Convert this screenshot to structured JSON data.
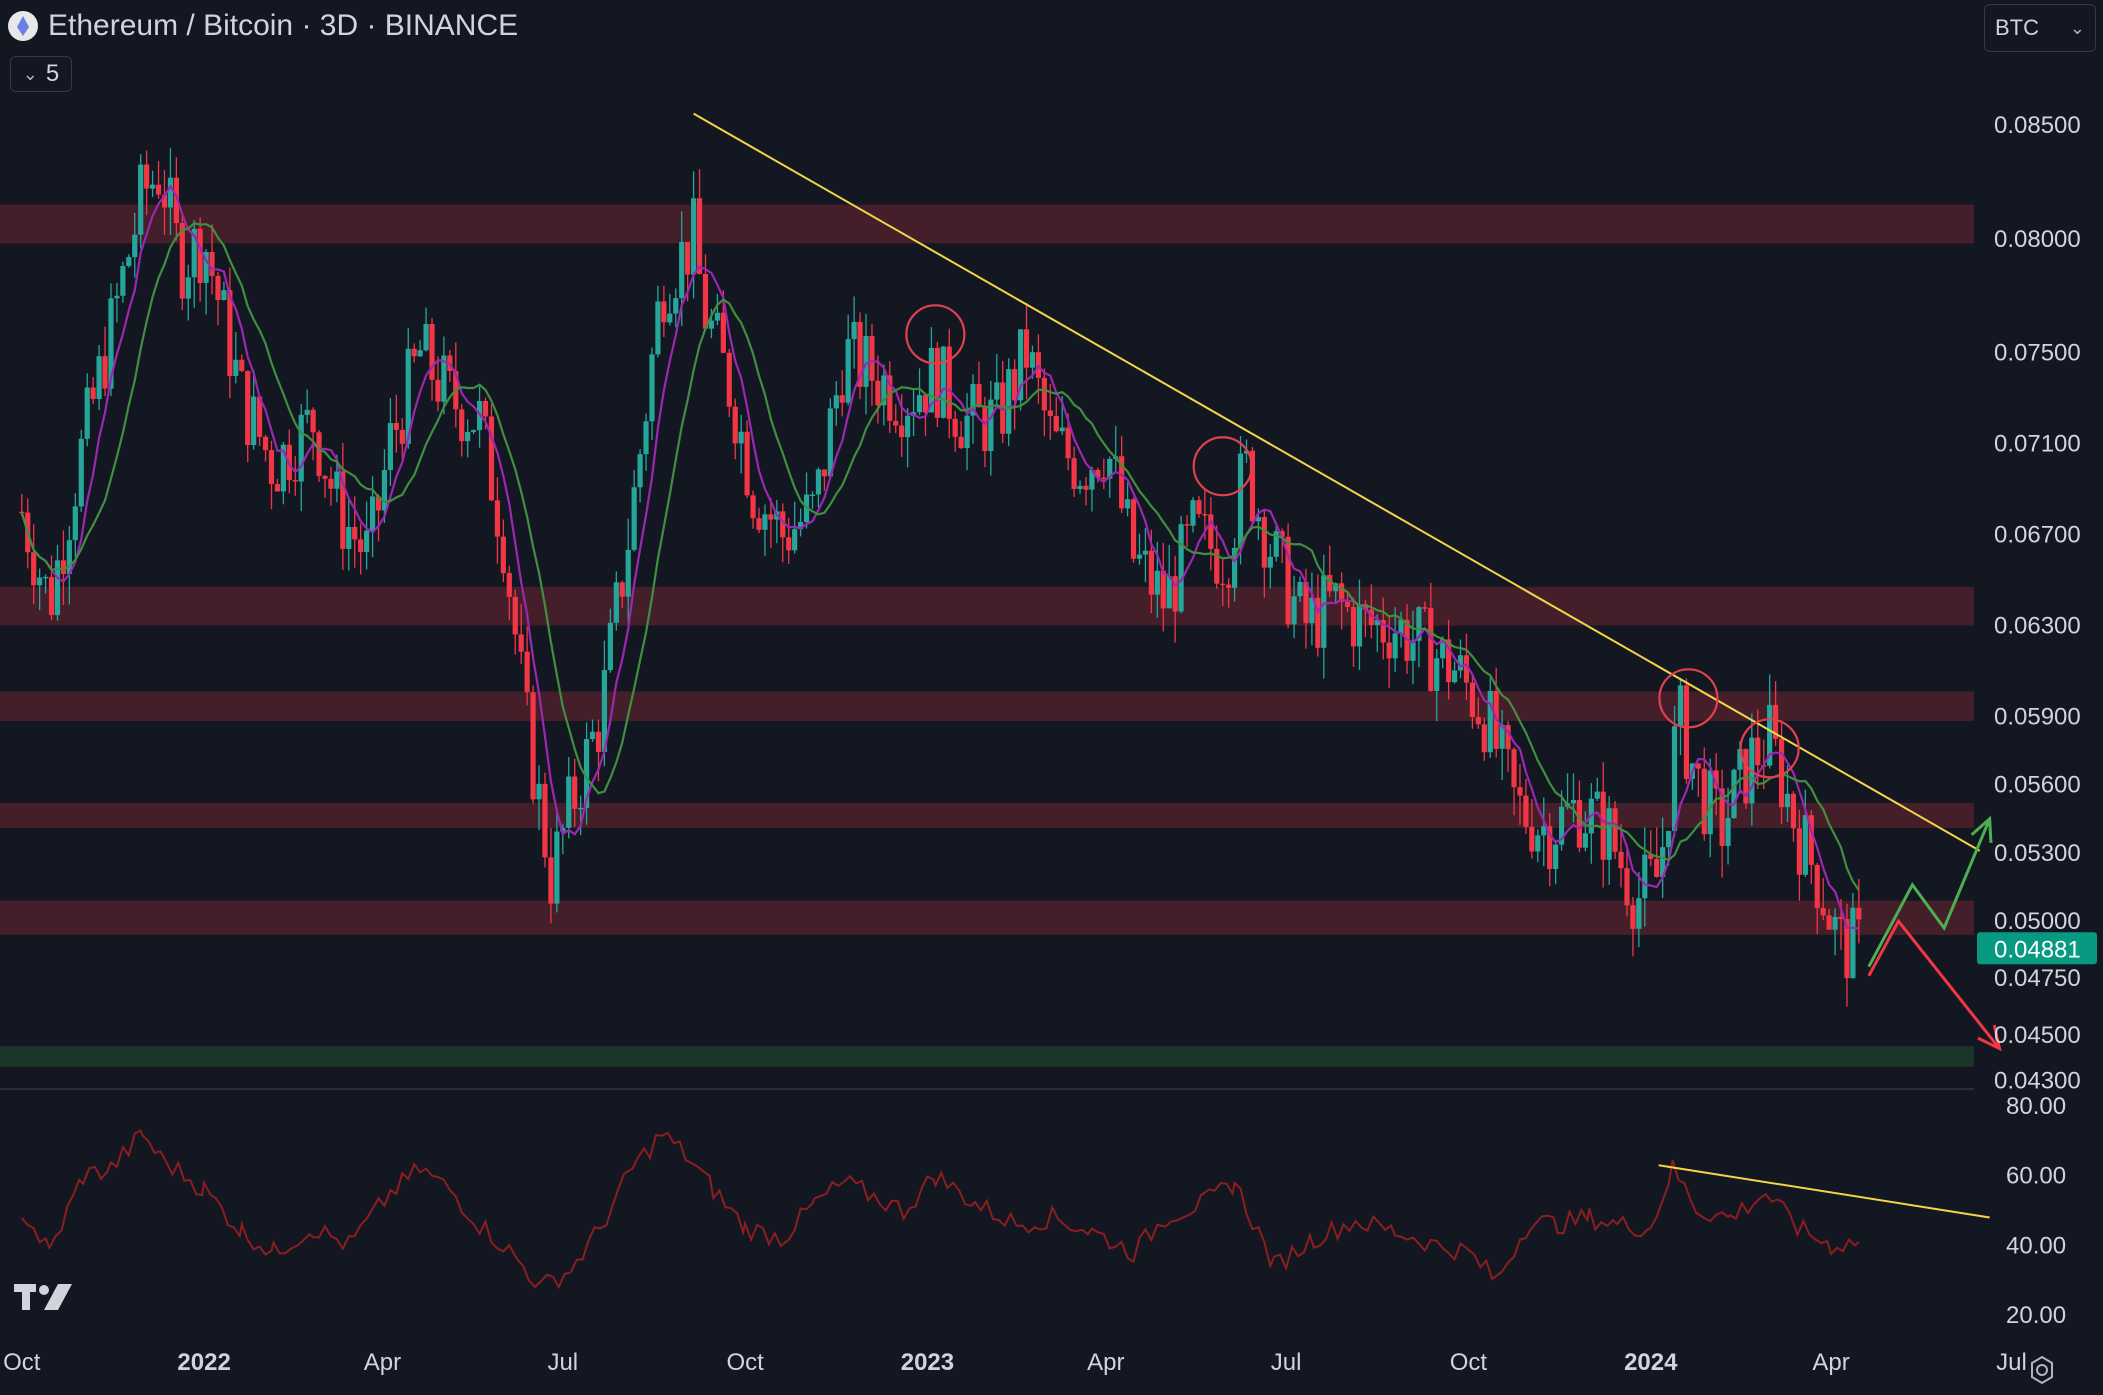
{
  "header": {
    "title": "Ethereum / Bitcoin · 3D · BINANCE",
    "indicator_count": "5",
    "currency": "BTC",
    "symbol_icon": "ethereum-icon"
  },
  "colors": {
    "background": "#131722",
    "up": "#26a69a",
    "down": "#f23645",
    "zone_resistance": "#4a1f2a",
    "zone_support": "#1d3a2a",
    "trendline": "#f5d547",
    "ma_fast": "#9c27b0",
    "ma_slow": "#3f8f3f",
    "rsi": "#8b1e1e",
    "arrow_up": "#4caf50",
    "arrow_down": "#f23645",
    "price_label": "#089981"
  },
  "chart_data": [
    {
      "type": "candlestick",
      "title": "Ethereum / Bitcoin · 3D · BINANCE",
      "ylim": [
        0.0428,
        0.0872
      ],
      "y_ticks": [
        "0.08500",
        "0.08000",
        "0.07500",
        "0.07100",
        "0.06700",
        "0.06300",
        "0.05900",
        "0.05600",
        "0.05300",
        "0.05000",
        "0.04750",
        "0.04500",
        "0.04300"
      ],
      "x_ticks": [
        {
          "label": "Oct",
          "date": "2021-10-01",
          "bold": false
        },
        {
          "label": "2022",
          "date": "2022-01-01",
          "bold": true
        },
        {
          "label": "Apr",
          "date": "2022-04-01",
          "bold": false
        },
        {
          "label": "Jul",
          "date": "2022-07-01",
          "bold": false
        },
        {
          "label": "Oct",
          "date": "2022-10-01",
          "bold": false
        },
        {
          "label": "2023",
          "date": "2023-01-01",
          "bold": true
        },
        {
          "label": "Apr",
          "date": "2023-04-01",
          "bold": false
        },
        {
          "label": "Jul",
          "date": "2023-07-01",
          "bold": false
        },
        {
          "label": "Oct",
          "date": "2023-10-01",
          "bold": false
        },
        {
          "label": "2024",
          "date": "2024-01-01",
          "bold": true
        },
        {
          "label": "Apr",
          "date": "2024-04-01",
          "bold": false
        },
        {
          "label": "Jul",
          "date": "2024-07-01",
          "bold": false
        }
      ],
      "last_price": "0.04881",
      "close_series": {
        "x": [
          "2021-10-01",
          "2021-10-15",
          "2021-11-01",
          "2021-11-15",
          "2021-12-01",
          "2021-12-10",
          "2021-12-20",
          "2022-01-01",
          "2022-01-20",
          "2022-02-05",
          "2022-02-25",
          "2022-03-10",
          "2022-03-25",
          "2022-04-05",
          "2022-04-20",
          "2022-05-05",
          "2022-05-20",
          "2022-06-01",
          "2022-06-12",
          "2022-06-25",
          "2022-07-05",
          "2022-07-20",
          "2022-08-05",
          "2022-08-20",
          "2022-09-05",
          "2022-09-10",
          "2022-09-25",
          "2022-10-05",
          "2022-10-20",
          "2022-11-05",
          "2022-11-20",
          "2022-12-05",
          "2022-12-20",
          "2023-01-05",
          "2023-01-20",
          "2023-02-05",
          "2023-02-20",
          "2023-03-05",
          "2023-03-20",
          "2023-04-01",
          "2023-04-15",
          "2023-05-01",
          "2023-05-15",
          "2023-06-01",
          "2023-06-10",
          "2023-06-25",
          "2023-07-10",
          "2023-07-25",
          "2023-08-10",
          "2023-08-25",
          "2023-09-10",
          "2023-09-25",
          "2023-10-10",
          "2023-10-25",
          "2023-11-10",
          "2023-11-25",
          "2023-12-10",
          "2023-12-25",
          "2024-01-05",
          "2024-01-15",
          "2024-01-25",
          "2024-02-05",
          "2024-02-20",
          "2024-03-01",
          "2024-03-15",
          "2024-03-25",
          "2024-04-05",
          "2024-04-15"
        ],
        "y": [
          0.068,
          0.064,
          0.071,
          0.076,
          0.082,
          0.083,
          0.079,
          0.08,
          0.073,
          0.07,
          0.072,
          0.068,
          0.066,
          0.071,
          0.075,
          0.073,
          0.072,
          0.067,
          0.059,
          0.052,
          0.055,
          0.059,
          0.068,
          0.078,
          0.08,
          0.077,
          0.073,
          0.069,
          0.067,
          0.068,
          0.075,
          0.074,
          0.073,
          0.074,
          0.072,
          0.072,
          0.075,
          0.071,
          0.07,
          0.071,
          0.066,
          0.064,
          0.067,
          0.066,
          0.07,
          0.066,
          0.063,
          0.064,
          0.063,
          0.063,
          0.062,
          0.061,
          0.059,
          0.055,
          0.054,
          0.055,
          0.054,
          0.051,
          0.052,
          0.059,
          0.056,
          0.054,
          0.057,
          0.058,
          0.054,
          0.052,
          0.049,
          0.0488
        ]
      },
      "zones": [
        {
          "kind": "resistance",
          "from": 0.0798,
          "to": 0.0815
        },
        {
          "kind": "resistance",
          "from": 0.063,
          "to": 0.0647
        },
        {
          "kind": "resistance",
          "from": 0.0588,
          "to": 0.0601
        },
        {
          "kind": "resistance",
          "from": 0.0541,
          "to": 0.0552
        },
        {
          "kind": "resistance",
          "from": 0.0494,
          "to": 0.0509
        },
        {
          "kind": "support",
          "from": 0.0436,
          "to": 0.0445
        }
      ],
      "trendline": {
        "from": {
          "x": "2022-09-05",
          "y": 0.0855
        },
        "to": {
          "x": "2024-06-15",
          "y": 0.0531
        }
      },
      "circled_highs": [
        {
          "x": "2023-01-05",
          "y": 0.0758
        },
        {
          "x": "2023-05-30",
          "y": 0.07
        },
        {
          "x": "2024-01-20",
          "y": 0.0598
        },
        {
          "x": "2024-03-01",
          "y": 0.0576
        }
      ],
      "projection_up": [
        {
          "x": "2024-04-20",
          "y": 0.048
        },
        {
          "x": "2024-05-12",
          "y": 0.0516
        },
        {
          "x": "2024-05-28",
          "y": 0.0497
        },
        {
          "x": "2024-06-20",
          "y": 0.0545
        }
      ],
      "projection_down": [
        {
          "x": "2024-04-20",
          "y": 0.0476
        },
        {
          "x": "2024-05-05",
          "y": 0.05
        },
        {
          "x": "2024-06-25",
          "y": 0.0444
        }
      ]
    },
    {
      "type": "line",
      "series": [
        {
          "x": [
            "2021-10-01",
            "2021-10-15",
            "2021-11-01",
            "2021-11-15",
            "2021-12-01",
            "2021-12-10",
            "2022-01-01",
            "2022-01-20",
            "2022-02-05",
            "2022-02-25",
            "2022-03-15",
            "2022-04-05",
            "2022-04-20",
            "2022-05-05",
            "2022-05-20",
            "2022-06-05",
            "2022-06-20",
            "2022-07-05",
            "2022-07-20",
            "2022-08-05",
            "2022-08-20",
            "2022-09-01",
            "2022-09-15",
            "2022-10-01",
            "2022-10-20",
            "2022-11-05",
            "2022-11-20",
            "2022-12-05",
            "2022-12-20",
            "2023-01-05",
            "2023-01-25",
            "2023-02-15",
            "2023-03-05",
            "2023-03-25",
            "2023-04-15",
            "2023-05-01",
            "2023-05-20",
            "2023-06-05",
            "2023-06-25",
            "2023-07-15",
            "2023-08-05",
            "2023-08-25",
            "2023-09-15",
            "2023-10-01",
            "2023-10-15",
            "2023-11-01",
            "2023-11-15",
            "2023-12-01",
            "2023-12-15",
            "2024-01-01",
            "2024-01-12",
            "2024-01-25",
            "2024-02-10",
            "2024-02-28",
            "2024-03-15",
            "2024-04-01",
            "2024-04-15"
          ],
          "y": [
            50,
            38,
            60,
            62,
            72,
            65,
            56,
            44,
            38,
            45,
            40,
            55,
            62,
            56,
            46,
            38,
            28,
            33,
            45,
            62,
            72,
            66,
            56,
            45,
            42,
            52,
            58,
            54,
            50,
            60,
            52,
            46,
            48,
            44,
            38,
            48,
            52,
            58,
            34,
            42,
            47,
            44,
            40,
            38,
            30,
            47,
            46,
            48,
            46,
            45,
            62,
            50,
            48,
            55,
            45,
            40,
            41
          ]
        }
      ],
      "ylim": [
        14,
        84
      ],
      "y_ticks": [
        "80.00",
        "60.00",
        "40.00",
        "20.00"
      ],
      "divergence_line": {
        "from": {
          "x": "2024-01-05",
          "y": 63
        },
        "to": {
          "x": "2024-06-20",
          "y": 48
        }
      }
    }
  ]
}
